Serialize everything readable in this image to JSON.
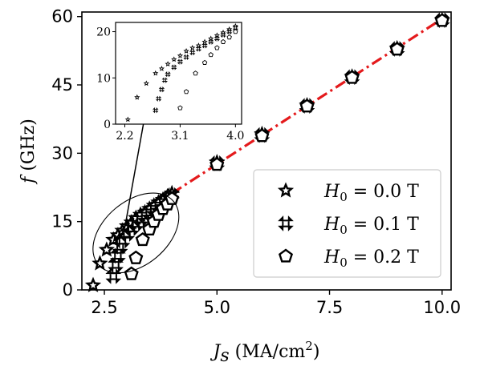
{
  "chart_data": {
    "type": "scatter",
    "xlabel": {
      "var": "J",
      "sub": "s",
      "unit": "(MA/cm",
      "sup": "2",
      "close": ")"
    },
    "ylabel": {
      "var": "f",
      "unit": "(GHz)"
    },
    "xlim": [
      2.0,
      10.2
    ],
    "ylim": [
      0,
      61
    ],
    "xticks": [
      "2.5",
      "5.0",
      "7.5",
      "10.0"
    ],
    "xtick_values": [
      2.5,
      5.0,
      7.5,
      10.0
    ],
    "yticks": [
      "0",
      "15",
      "30",
      "45",
      "60"
    ],
    "ytick_values": [
      0,
      15,
      30,
      45,
      60
    ],
    "grid": false,
    "legend_position": "right",
    "series": [
      {
        "name": "H0 = 0.0 T",
        "legend": {
          "var": "H",
          "sub": "0",
          "eq": " = 0.0 T"
        },
        "marker": "star",
        "x": [
          2.25,
          2.4,
          2.55,
          2.7,
          2.8,
          2.9,
          3.0,
          3.1,
          3.2,
          3.3,
          3.4,
          3.5,
          3.6,
          3.7,
          3.8,
          3.9,
          4.0,
          5.0,
          6.0,
          7.0,
          8.0,
          9.0,
          10.0
        ],
        "y": [
          1.0,
          5.8,
          8.8,
          11.0,
          12.0,
          13.0,
          14.0,
          14.8,
          15.8,
          16.5,
          17.0,
          17.8,
          18.5,
          19.2,
          19.8,
          20.5,
          21.2,
          28.0,
          34.2,
          40.5,
          46.8,
          53.0,
          59.2
        ]
      },
      {
        "name": "H0 = 0.1 T",
        "legend": {
          "var": "H",
          "sub": "0",
          "eq": " = 0.1 T"
        },
        "marker": "x",
        "x": [
          2.7,
          2.75,
          2.8,
          2.85,
          2.9,
          3.0,
          3.1,
          3.2,
          3.3,
          3.4,
          3.5,
          3.6,
          3.7,
          3.8,
          3.9,
          4.0,
          5.0,
          6.0,
          7.0,
          8.0,
          9.0,
          10.0
        ],
        "y": [
          3.0,
          5.5,
          7.5,
          9.5,
          10.8,
          12.3,
          13.5,
          14.5,
          15.5,
          16.3,
          17.0,
          17.8,
          18.5,
          19.3,
          20.0,
          20.8,
          27.8,
          34.0,
          40.4,
          46.7,
          52.9,
          59.2
        ]
      },
      {
        "name": "H0 = 0.2 T",
        "legend": {
          "var": "H",
          "sub": "0",
          "eq": " = 0.2 T"
        },
        "marker": "pentagon",
        "x": [
          3.1,
          3.2,
          3.35,
          3.5,
          3.6,
          3.7,
          3.8,
          3.9,
          4.0,
          5.0,
          6.0,
          7.0,
          8.0,
          9.0,
          10.0
        ],
        "y": [
          3.5,
          7.0,
          11.0,
          13.3,
          15.0,
          16.5,
          17.8,
          18.8,
          20.0,
          27.5,
          33.8,
          40.3,
          46.6,
          52.8,
          59.1
        ]
      }
    ],
    "fit_line": {
      "style": "dash-dot",
      "color": "#e41a1c",
      "x": [
        4.0,
        10.0
      ],
      "y": [
        21.2,
        59.5
      ]
    },
    "inset": {
      "xlim": [
        2.05,
        4.1
      ],
      "ylim": [
        0,
        22
      ],
      "xticks": [
        "2.2",
        "3.1",
        "4.0"
      ],
      "xtick_values": [
        2.2,
        3.1,
        4.0
      ],
      "yticks": [
        "0",
        "10",
        "20"
      ],
      "ytick_values": [
        0,
        10,
        20
      ]
    },
    "annotations": [
      {
        "type": "ellipse",
        "cx": 3.2,
        "cy": 12.5,
        "rx": 1.15,
        "ry": 12.5,
        "rotation": -40
      },
      {
        "type": "arrow",
        "from": [
          2.95,
          13.5
        ],
        "to": [
          3.55,
          46.5
        ]
      }
    ]
  }
}
